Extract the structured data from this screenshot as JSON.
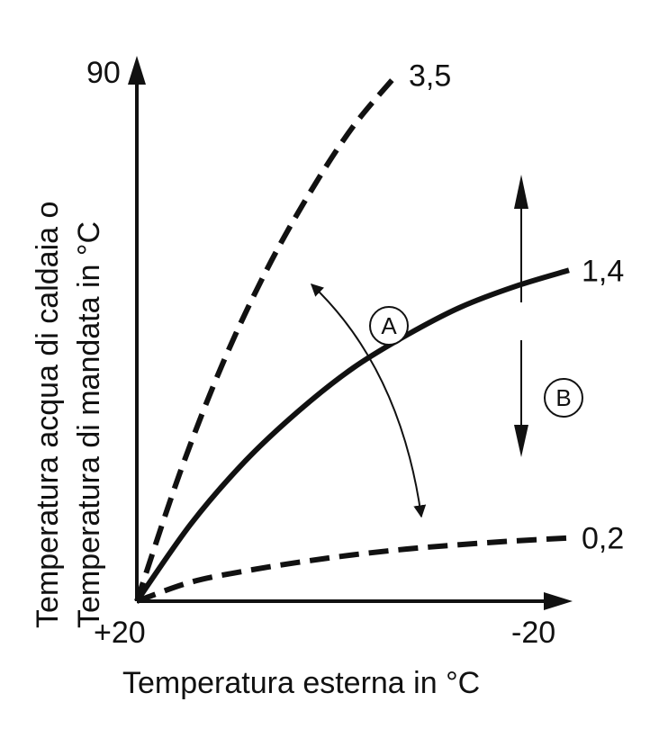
{
  "chart_data": {
    "type": "line",
    "title": "",
    "xlabel": "Temperatura esterna in °C",
    "ylabel_lines": [
      "Temperatura acqua di caldaia o",
      "Temperatura di mandata in °C"
    ],
    "x_ticks": [
      "+20",
      "-20"
    ],
    "y_ticks": [
      "90"
    ],
    "xlim": [
      20,
      -20
    ],
    "ylim": [
      20,
      90
    ],
    "grid": false,
    "legend": "none",
    "series": [
      {
        "name": "3,5",
        "style": "dashed",
        "x": [
          20,
          16,
          12,
          8,
          4,
          0,
          -4
        ],
        "y": [
          20,
          37.5,
          52.5,
          65,
          75.5,
          84.5,
          91.5
        ]
      },
      {
        "name": "1,4",
        "style": "solid",
        "x": [
          20,
          15,
          10,
          5,
          0,
          -5,
          -10,
          -15,
          -20
        ],
        "y": [
          20,
          30.5,
          39,
          45.9,
          51.7,
          56.2,
          60,
          62.8,
          65
        ]
      },
      {
        "name": "0,2",
        "style": "dashed",
        "x": [
          20,
          15,
          10,
          5,
          0,
          -5,
          -10,
          -15,
          -20
        ],
        "y": [
          20,
          22.6,
          24.1,
          25.3,
          26.3,
          27.1,
          27.7,
          28.2,
          28.6
        ]
      }
    ],
    "annotations": [
      {
        "id": "A",
        "label": "A"
      },
      {
        "id": "B",
        "label": "B"
      }
    ]
  }
}
